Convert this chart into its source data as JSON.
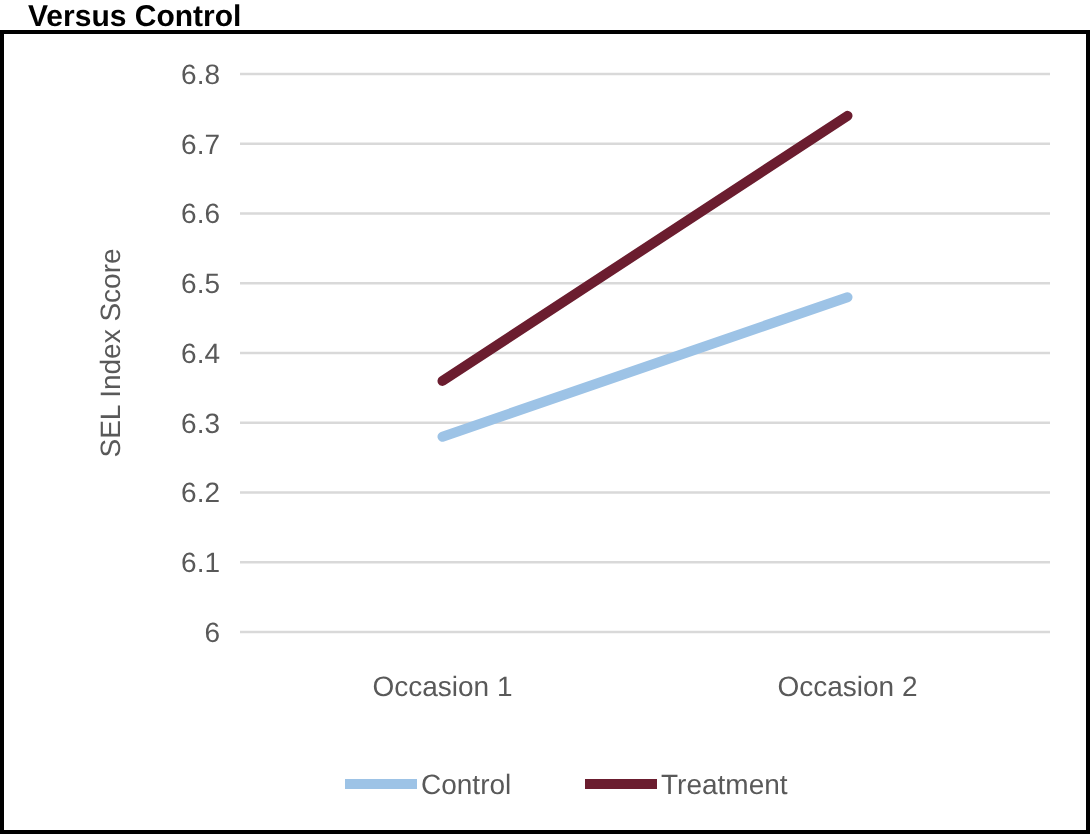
{
  "chart_data": {
    "type": "line",
    "title": "Versus Control",
    "ylabel": "SEL Index Score",
    "categories": [
      "Occasion 1",
      "Occasion 2"
    ],
    "series": [
      {
        "name": "Control",
        "color": "#9dc3e6",
        "values": [
          6.28,
          6.48
        ]
      },
      {
        "name": "Treatment",
        "color": "#6b1d2f",
        "values": [
          6.36,
          6.74
        ]
      }
    ],
    "ylim": [
      6,
      6.8
    ],
    "yticks": [
      {
        "value": 6,
        "label": "6"
      },
      6.1,
      6.2,
      6.3,
      6.4,
      6.5,
      6.6,
      6.7,
      6.8
    ],
    "grid": "y",
    "legend": "bottom",
    "marker": "none",
    "line_style": "solid"
  }
}
